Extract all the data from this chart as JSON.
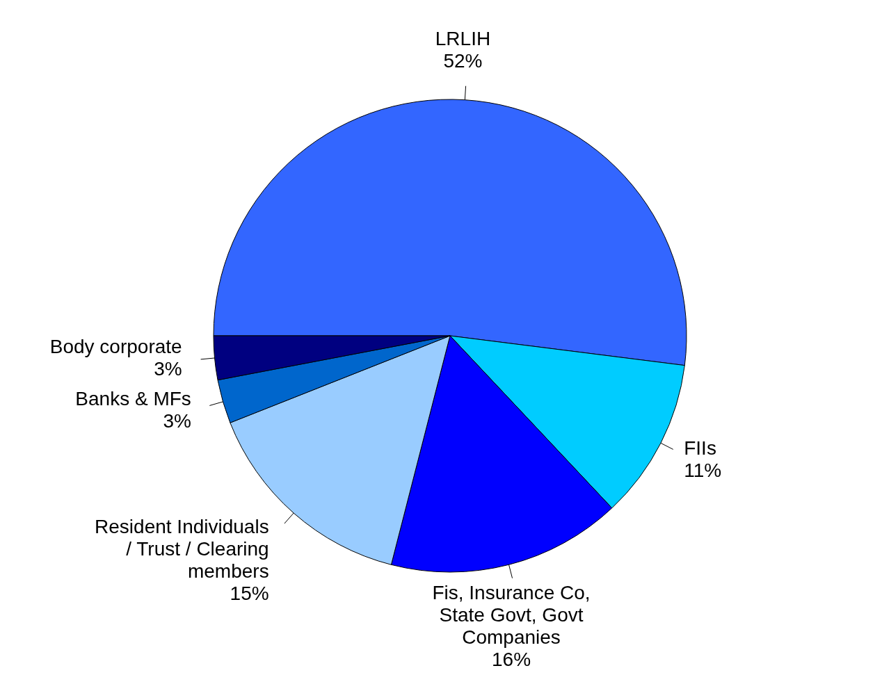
{
  "chart_data": {
    "type": "pie",
    "categories": [
      "LRLIH",
      "FIIs",
      "Fis, Insurance Co, State Govt, Govt Companies",
      "Resident Individuals / Trust / Clearing members",
      "Banks & MFs",
      "Body corporate"
    ],
    "values": [
      52,
      11,
      16,
      15,
      3,
      3
    ],
    "colors": [
      "#3366ff",
      "#00ccff",
      "#0000ff",
      "#99ccff",
      "#0066cc",
      "#000080"
    ],
    "value_labels": [
      "52%",
      "11%",
      "16%",
      "15%",
      "3%",
      "3%"
    ]
  }
}
